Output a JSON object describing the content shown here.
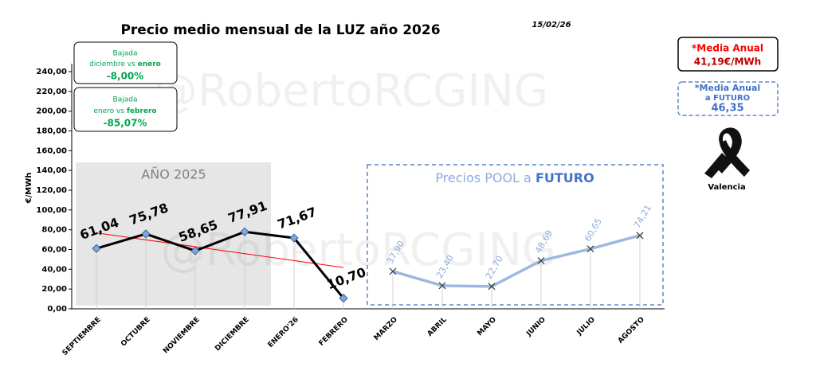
{
  "chart_data": {
    "type": "line",
    "title": "Precio medio mensual de la LUZ año 2026",
    "date": "15/02/26",
    "y_label": "€/MWh",
    "watermark": "@RobertoRCGING",
    "categories": [
      "SEPTIEMBRE",
      "OCTUBRE",
      "NOVIEMBRE",
      "DICIEMBRE",
      "ENERO'26",
      "FEBRERO",
      "MARZO",
      "ABRIL",
      "MAYO",
      "JUNIO",
      "JULIO",
      "AGOSTO"
    ],
    "series": [
      {
        "name": "AÑO 2025",
        "color": "#000000",
        "marker_color": "#7ea6e0",
        "values": [
          61.04,
          75.78,
          58.65,
          77.91,
          71.67,
          10.7,
          null,
          null,
          null,
          null,
          null,
          null
        ],
        "value_labels": [
          "61,04",
          "75,78",
          "58,65",
          "77,91",
          "71,67",
          "10,70",
          null,
          null,
          null,
          null,
          null,
          null
        ]
      },
      {
        "name": "Precios POOL a FUTURO",
        "color": "#9db8e0",
        "marker_color": "#404040",
        "values": [
          null,
          null,
          null,
          null,
          null,
          null,
          37.9,
          23.4,
          22.7,
          48.69,
          60.65,
          74.21
        ],
        "value_labels": [
          null,
          null,
          null,
          null,
          null,
          null,
          "37,90",
          "23,40",
          "22,70",
          "48,69",
          "60,65",
          "74,21"
        ]
      }
    ],
    "trendline": true,
    "trend_color": "#ff0000",
    "ylim": [
      0,
      240
    ],
    "yticks": [
      {
        "value": 0,
        "label": "0,00"
      },
      {
        "value": 20,
        "label": "20,00"
      },
      {
        "value": 40,
        "label": "40,00"
      },
      {
        "value": 60,
        "label": "60,00"
      },
      {
        "value": 80,
        "label": "80,00"
      },
      {
        "value": 100,
        "label": "100,00"
      },
      {
        "value": 120,
        "label": "120,00"
      },
      {
        "value": 140,
        "label": "140,00"
      },
      {
        "value": 160,
        "label": "160,00"
      },
      {
        "value": 180,
        "label": "180,00"
      },
      {
        "value": 200,
        "label": "200,00"
      },
      {
        "value": 220,
        "label": "220,00"
      },
      {
        "value": 240,
        "label": "240,00"
      }
    ],
    "annotations": [
      {
        "line1": "Bajada",
        "line2": "diciembre vs ",
        "line2_bold": "enero",
        "value": "-8,00%"
      },
      {
        "line1": "Bajada",
        "line2": "enero vs ",
        "line2_bold": "febrero",
        "value": "-85,07%"
      }
    ],
    "media_anual": {
      "title": "*Media Anual",
      "value": "41,19€/MWh"
    },
    "media_futuro": {
      "title": "*Media Anual",
      "subtitle": "a FUTURO",
      "value": "46,35"
    },
    "ribbon_label": "Valencia"
  }
}
